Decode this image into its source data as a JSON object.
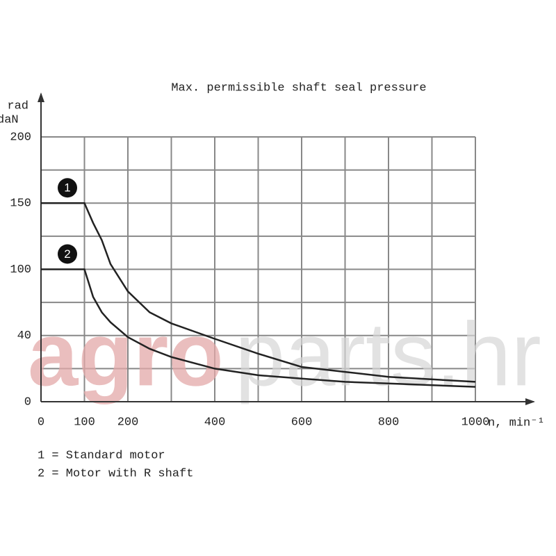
{
  "chart_data": {
    "type": "line",
    "title": "Max. permissible shaft seal pressure",
    "ylabel": [
      "P rad",
      "daN"
    ],
    "xlabel": "n, min⁻¹",
    "x": [
      0,
      100,
      120,
      140,
      160,
      200,
      250,
      300,
      400,
      500,
      600,
      700,
      800,
      1000
    ],
    "series": [
      {
        "name": "1 = Standard motor",
        "key": "1",
        "color": "#222222",
        "values": [
          150,
          150,
          135,
          122,
          104,
          80,
          61,
          51,
          38,
          29,
          21,
          18,
          15,
          12
        ]
      },
      {
        "name": "2 = Motor with R shaft",
        "key": "2",
        "color": "#222222",
        "values": [
          100,
          100,
          75,
          61,
          52,
          39,
          32,
          27,
          20,
          16,
          14,
          12,
          11,
          9
        ]
      }
    ],
    "xlim": [
      0,
      1000
    ],
    "xticks": [
      0,
      100,
      200,
      400,
      600,
      800,
      1000
    ],
    "ylim": [
      0,
      200
    ],
    "yticks": [
      0,
      40,
      100,
      150,
      200
    ],
    "grid": true,
    "watermark": [
      "agro",
      "parts.hr"
    ]
  }
}
